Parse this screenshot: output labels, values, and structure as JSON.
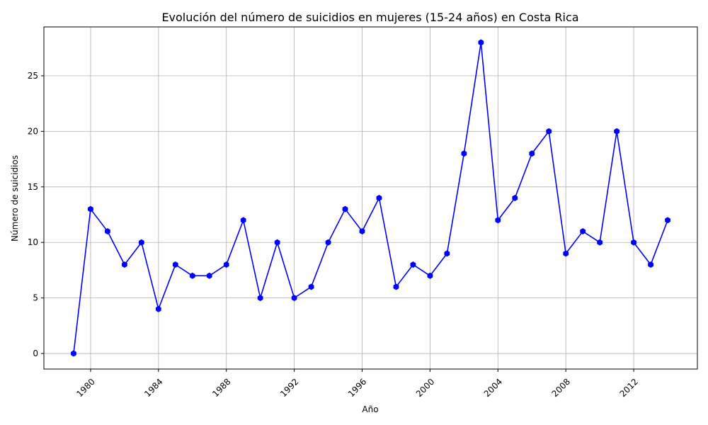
{
  "chart_data": {
    "type": "line",
    "title": "Evolución del número de suicidios en mujeres (15-24 años) en Costa Rica",
    "xlabel": "Año",
    "ylabel": "Número de suicidios",
    "x": [
      1979,
      1980,
      1981,
      1982,
      1983,
      1984,
      1985,
      1986,
      1987,
      1988,
      1989,
      1990,
      1991,
      1992,
      1993,
      1994,
      1995,
      1996,
      1997,
      1998,
      1999,
      2000,
      2001,
      2002,
      2003,
      2004,
      2005,
      2006,
      2007,
      2008,
      2009,
      2010,
      2011,
      2012,
      2013,
      2014
    ],
    "series": [
      {
        "name": "",
        "color": "#0000ff",
        "marker": "hexagon",
        "values": [
          0,
          13,
          11,
          8,
          10,
          4,
          8,
          7,
          7,
          8,
          12,
          5,
          10,
          5,
          6,
          10,
          13,
          11,
          14,
          6,
          8,
          7,
          9,
          18,
          28,
          12,
          14,
          18,
          20,
          9,
          11,
          10,
          20,
          10,
          8,
          12
        ]
      }
    ],
    "xticks": [
      1980,
      1984,
      1988,
      1992,
      1996,
      2000,
      2004,
      2008,
      2012
    ],
    "yticks": [
      0,
      5,
      10,
      15,
      20,
      25
    ],
    "xlim": [
      1977.25,
      2015.75
    ],
    "ylim": [
      -1.4,
      29.4
    ],
    "grid": true,
    "legend": "none"
  }
}
